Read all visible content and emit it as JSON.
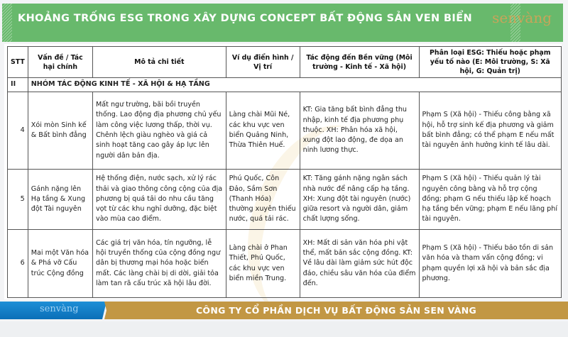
{
  "header": {
    "title": "KHOẢNG TRỐNG ESG TRONG XÂY DỰNG CONCEPT BẤT ĐỘNG SẢN VEN BIỂN",
    "logo": "senvàng"
  },
  "table": {
    "columns": [
      "STT",
      "Vấn đề / Tác hại chính",
      "Mô tả chi tiết",
      "Ví dụ điển hình / Vị trí",
      "Tác động đến Bền vững (Môi trường - Kinh tế - Xã hội)",
      "Phân loại ESG: Thiếu hoặc phạm yếu tố nào (E: Môi trường, S: Xã hội, G: Quản trị)"
    ],
    "group": {
      "num": "II",
      "label": "NHÓM TÁC ĐỘNG KINH TẾ - XÃ HỘI & HẠ TẦNG"
    },
    "rows": [
      {
        "stt": "4",
        "issue": "Xói mòn Sinh kế & Bất bình đẳng",
        "desc": "Mất ngư trường, bãi bồi truyền thống. Lao động địa phương chủ yếu làm công việc lương thấp, thời vụ. Chênh lệch giàu nghèo và giá cả sinh hoạt tăng cao gây áp lực lên người dân bản địa.",
        "example": "Làng chài Mũi Né, các khu vực ven biển Quảng Ninh, Thừa Thiên Huế.",
        "impact": "KT: Gia tăng bất bình đẳng thu nhập, kinh tế địa phương phụ thuộc. XH: Phân hóa xã hội, xung đột lao động, đe dọa an ninh lương thực.",
        "esg": "Phạm S (Xã hội) - Thiếu công bằng xã hội, hỗ trợ sinh kế địa phương và giảm bất bình đẳng; có thể phạm E nếu mất tài nguyên ảnh hưởng kinh tế lâu dài."
      },
      {
        "stt": "5",
        "issue": "Gánh nặng lên Hạ tầng & Xung đột Tài nguyên",
        "desc": "Hệ thống điện, nước sạch, xử lý rác thải và giao thông công cộng của địa phương bị quá tải do nhu cầu tăng vọt từ các khu nghỉ dưỡng, đặc biệt vào mùa cao điểm.",
        "example": "Phú Quốc, Côn Đảo, Sầm Sơn (Thanh Hóa) thường xuyên thiếu nước, quá tải rác.",
        "impact": "KT: Tăng gánh nặng ngân sách nhà nước để nâng cấp hạ tầng. XH: Xung đột tài nguyên (nước) giữa resort và người dân, giảm chất lượng sống.",
        "esg": "Phạm S (Xã hội) - Thiếu quản lý tài nguyên công bằng và hỗ trợ cộng đồng; phạm G nếu thiếu lập kế hoạch hạ tầng bền vững; phạm E nếu lãng phí tài nguyên."
      },
      {
        "stt": "6",
        "issue": "Mai một Văn hóa & Phá vỡ Cấu trúc Cộng đồng",
        "desc": "Các giá trị văn hóa, tín ngưỡng, lễ hội truyền thống của cộng đồng ngư dân bị thương mại hóa hoặc biến mất. Các làng chài bị di dời, giải tỏa làm tan rã cấu trúc xã hội lâu đời.",
        "example": "Làng chài ở Phan Thiết, Phú Quốc, các khu vực ven biển miền Trung.",
        "impact": "XH: Mất di sản văn hóa phi vật thể, mất bản sắc cộng đồng. KT: Về lâu dài làm giảm sức hút độc đáo, chiều sâu văn hóa của điểm đến.",
        "esg": "Phạm S (Xã hội) - Thiếu bảo tồn di sản văn hóa và tham vấn cộng đồng; vi phạm quyền lợi xã hội và bản sắc địa phương."
      }
    ]
  },
  "footer": {
    "logo": "senvàng",
    "company": "CÔNG TY CỔ PHẦN DỊCH VỤ BẤT ĐỘNG SẢN SEN VÀNG"
  },
  "colors": {
    "header_green": "#68b96c",
    "footer_blue": "#1e8fd6",
    "footer_gold": "#c29744"
  }
}
